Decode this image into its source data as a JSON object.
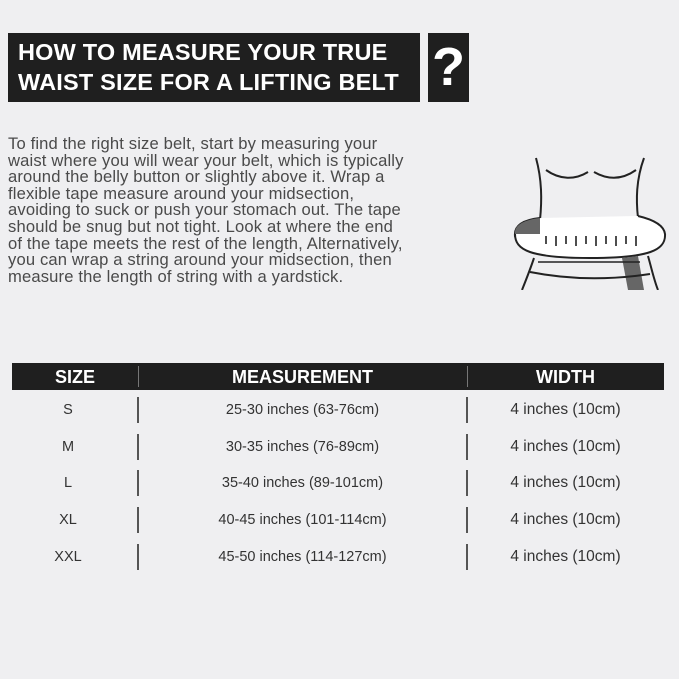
{
  "title": {
    "line1": "HOW TO MEASURE YOUR TRUE",
    "line2": "WAIST SIZE FOR A LIFTING BELT",
    "mark": "?"
  },
  "instructions": [
    "To find the right size belt, start by measuring your",
    "waist where you will wear your belt, which is typically",
    "around the belly button or slightly above it. Wrap a",
    "flexible tape measure around your midsection,",
    "avoiding to suck or push your stomach out. The tape",
    "should be snug but not tight. Look at where the end",
    "of the tape meets the rest of the length, Alternatively,",
    "you can wrap a string around your midsection, then",
    "measure the length of string with a yardstick."
  ],
  "illustration_icon": "waist-tape-measure-icon",
  "table": {
    "headers": [
      "SIZE",
      "MEASUREMENT",
      "WIDTH"
    ],
    "rows": [
      [
        "S",
        "25-30 inches (63-76cm)",
        "4 inches (10cm)"
      ],
      [
        "M",
        "30-35 inches (76-89cm)",
        "4 inches (10cm)"
      ],
      [
        "L",
        "35-40 inches (89-101cm)",
        "4 inches (10cm)"
      ],
      [
        "XL",
        "40-45 inches (101-114cm)",
        "4 inches (10cm)"
      ],
      [
        "XXL",
        "45-50 inches (114-127cm)",
        "4 inches (10cm)"
      ]
    ]
  },
  "colors": {
    "background": "#efeff1",
    "header": "#1f1f1f",
    "text": "#333333"
  }
}
